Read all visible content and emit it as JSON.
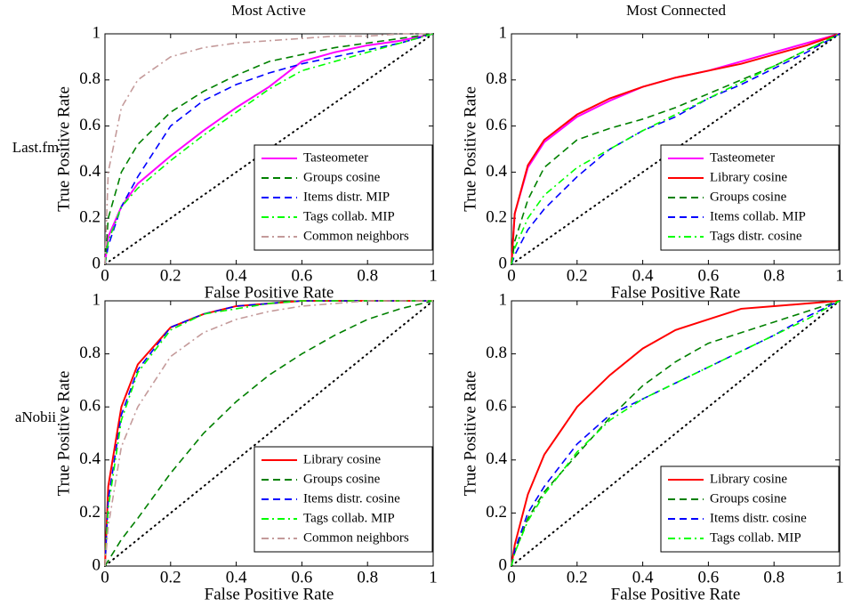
{
  "grid_labels": {
    "columns": [
      "Most Active",
      "Most Connected"
    ],
    "rows": [
      "Last.fm",
      "aNobii"
    ]
  },
  "chart_data": [
    {
      "type": "line",
      "xlabel": "False Positive Rate",
      "ylabel": "True Positive Rate",
      "x": [
        0,
        0.01,
        0.05,
        0.1,
        0.2,
        0.3,
        0.4,
        0.5,
        0.6,
        0.7,
        0.8,
        0.9,
        1
      ],
      "xlim": [
        0,
        1
      ],
      "ylim": [
        0,
        1
      ],
      "xticks": [
        0,
        0.2,
        0.4,
        0.6,
        0.8,
        1
      ],
      "yticks": [
        0,
        0.2,
        0.4,
        0.6,
        0.8,
        1
      ],
      "legend": "lower right",
      "series": [
        {
          "name": "Tasteometer",
          "color": "#ff00ff",
          "style": "solid",
          "values": [
            0,
            0.12,
            0.25,
            0.35,
            0.47,
            0.58,
            0.68,
            0.77,
            0.88,
            0.92,
            0.95,
            0.97,
            1
          ]
        },
        {
          "name": "Groups cosine",
          "color": "#008000",
          "style": "dashed",
          "values": [
            0,
            0.2,
            0.4,
            0.52,
            0.66,
            0.75,
            0.82,
            0.88,
            0.91,
            0.94,
            0.96,
            0.98,
            1
          ]
        },
        {
          "name": "Items distr. MIP",
          "color": "#0000ff",
          "style": "dashed",
          "values": [
            0,
            0.08,
            0.25,
            0.38,
            0.6,
            0.71,
            0.78,
            0.83,
            0.87,
            0.9,
            0.93,
            0.96,
            1
          ]
        },
        {
          "name": "Tags collab. MIP",
          "color": "#00ff00",
          "style": "dashdot",
          "values": [
            0,
            0.1,
            0.25,
            0.33,
            0.45,
            0.56,
            0.66,
            0.76,
            0.84,
            0.88,
            0.92,
            0.96,
            1
          ]
        },
        {
          "name": "Common neighbors",
          "color": "#c49a9a",
          "style": "dashdot",
          "values": [
            0,
            0.4,
            0.68,
            0.8,
            0.9,
            0.94,
            0.96,
            0.97,
            0.98,
            0.99,
            0.99,
            1,
            1
          ]
        }
      ]
    },
    {
      "type": "line",
      "xlabel": "False Positive Rate",
      "ylabel": "True Positive Rate",
      "x": [
        0,
        0.01,
        0.05,
        0.1,
        0.2,
        0.3,
        0.4,
        0.5,
        0.6,
        0.7,
        0.8,
        0.9,
        1
      ],
      "xlim": [
        0,
        1
      ],
      "ylim": [
        0,
        1
      ],
      "xticks": [
        0,
        0.2,
        0.4,
        0.6,
        0.8,
        1
      ],
      "yticks": [
        0,
        0.2,
        0.4,
        0.6,
        0.8,
        1
      ],
      "legend": "lower right",
      "series": [
        {
          "name": "Tasteometer",
          "color": "#ff00ff",
          "style": "solid",
          "values": [
            0,
            0.22,
            0.42,
            0.53,
            0.64,
            0.71,
            0.77,
            0.81,
            0.84,
            0.88,
            0.92,
            0.96,
            1
          ]
        },
        {
          "name": "Library cosine",
          "color": "#ff0000",
          "style": "solid",
          "values": [
            0,
            0.22,
            0.43,
            0.54,
            0.65,
            0.72,
            0.77,
            0.81,
            0.84,
            0.87,
            0.91,
            0.95,
            1
          ]
        },
        {
          "name": "Groups cosine",
          "color": "#008000",
          "style": "dashed",
          "values": [
            0,
            0.1,
            0.28,
            0.42,
            0.54,
            0.59,
            0.63,
            0.68,
            0.74,
            0.8,
            0.86,
            0.93,
            1
          ]
        },
        {
          "name": "Items collab. MIP",
          "color": "#0000ff",
          "style": "dashed",
          "values": [
            0,
            0.04,
            0.15,
            0.24,
            0.38,
            0.5,
            0.58,
            0.64,
            0.72,
            0.78,
            0.85,
            0.92,
            1
          ]
        },
        {
          "name": "Tags distr. cosine",
          "color": "#00ff00",
          "style": "dashdot",
          "values": [
            0,
            0.07,
            0.2,
            0.3,
            0.42,
            0.5,
            0.58,
            0.65,
            0.72,
            0.79,
            0.86,
            0.93,
            1
          ]
        }
      ]
    },
    {
      "type": "line",
      "xlabel": "False Positive Rate",
      "ylabel": "True Positive Rate",
      "x": [
        0,
        0.01,
        0.05,
        0.1,
        0.2,
        0.3,
        0.4,
        0.5,
        0.6,
        0.7,
        0.8,
        0.9,
        1
      ],
      "xlim": [
        0,
        1
      ],
      "ylim": [
        0,
        1
      ],
      "xticks": [
        0,
        0.2,
        0.4,
        0.6,
        0.8,
        1
      ],
      "yticks": [
        0,
        0.2,
        0.4,
        0.6,
        0.8,
        1
      ],
      "legend": "lower right",
      "series": [
        {
          "name": "Library cosine",
          "color": "#ff0000",
          "style": "solid",
          "values": [
            0,
            0.3,
            0.6,
            0.76,
            0.9,
            0.95,
            0.98,
            0.99,
            1,
            1,
            1,
            1,
            1
          ]
        },
        {
          "name": "Groups cosine",
          "color": "#008000",
          "style": "dashed",
          "values": [
            0,
            0.02,
            0.1,
            0.18,
            0.35,
            0.5,
            0.62,
            0.72,
            0.8,
            0.87,
            0.93,
            0.97,
            1
          ]
        },
        {
          "name": "Items distr. cosine",
          "color": "#0000ff",
          "style": "dashed",
          "values": [
            0,
            0.25,
            0.57,
            0.74,
            0.9,
            0.95,
            0.98,
            0.99,
            1,
            1,
            1,
            1,
            1
          ]
        },
        {
          "name": "Tags collab. MIP",
          "color": "#00ff00",
          "style": "dashdot",
          "values": [
            0,
            0.22,
            0.55,
            0.73,
            0.89,
            0.95,
            0.97,
            0.99,
            1,
            1,
            1,
            1,
            1
          ]
        },
        {
          "name": "Common neighbors",
          "color": "#c49a9a",
          "style": "dashdot",
          "values": [
            0,
            0.15,
            0.45,
            0.6,
            0.79,
            0.88,
            0.93,
            0.96,
            0.98,
            0.99,
            1,
            1,
            1
          ]
        }
      ]
    },
    {
      "type": "line",
      "xlabel": "False Positive Rate",
      "ylabel": "True Positive Rate",
      "x": [
        0,
        0.01,
        0.05,
        0.1,
        0.2,
        0.3,
        0.4,
        0.5,
        0.6,
        0.7,
        0.8,
        0.9,
        1
      ],
      "xlim": [
        0,
        1
      ],
      "ylim": [
        0,
        1
      ],
      "xticks": [
        0,
        0.2,
        0.4,
        0.6,
        0.8,
        1
      ],
      "yticks": [
        0,
        0.2,
        0.4,
        0.6,
        0.8,
        1
      ],
      "legend": "lower right",
      "series": [
        {
          "name": "Library cosine",
          "color": "#ff0000",
          "style": "solid",
          "values": [
            0,
            0.08,
            0.27,
            0.42,
            0.6,
            0.72,
            0.82,
            0.89,
            0.93,
            0.97,
            0.98,
            0.99,
            1
          ]
        },
        {
          "name": "Groups cosine",
          "color": "#008000",
          "style": "dashed",
          "values": [
            0,
            0.05,
            0.18,
            0.28,
            0.42,
            0.56,
            0.68,
            0.77,
            0.84,
            0.88,
            0.92,
            0.96,
            1
          ]
        },
        {
          "name": "Items distr. cosine",
          "color": "#0000ff",
          "style": "dashed",
          "values": [
            0,
            0.06,
            0.2,
            0.3,
            0.46,
            0.57,
            0.63,
            0.69,
            0.75,
            0.81,
            0.87,
            0.94,
            1
          ]
        },
        {
          "name": "Tags collab. MIP",
          "color": "#00ff00",
          "style": "dashdot",
          "values": [
            0,
            0.05,
            0.17,
            0.27,
            0.43,
            0.55,
            0.63,
            0.69,
            0.75,
            0.81,
            0.87,
            0.93,
            1
          ]
        }
      ]
    }
  ]
}
